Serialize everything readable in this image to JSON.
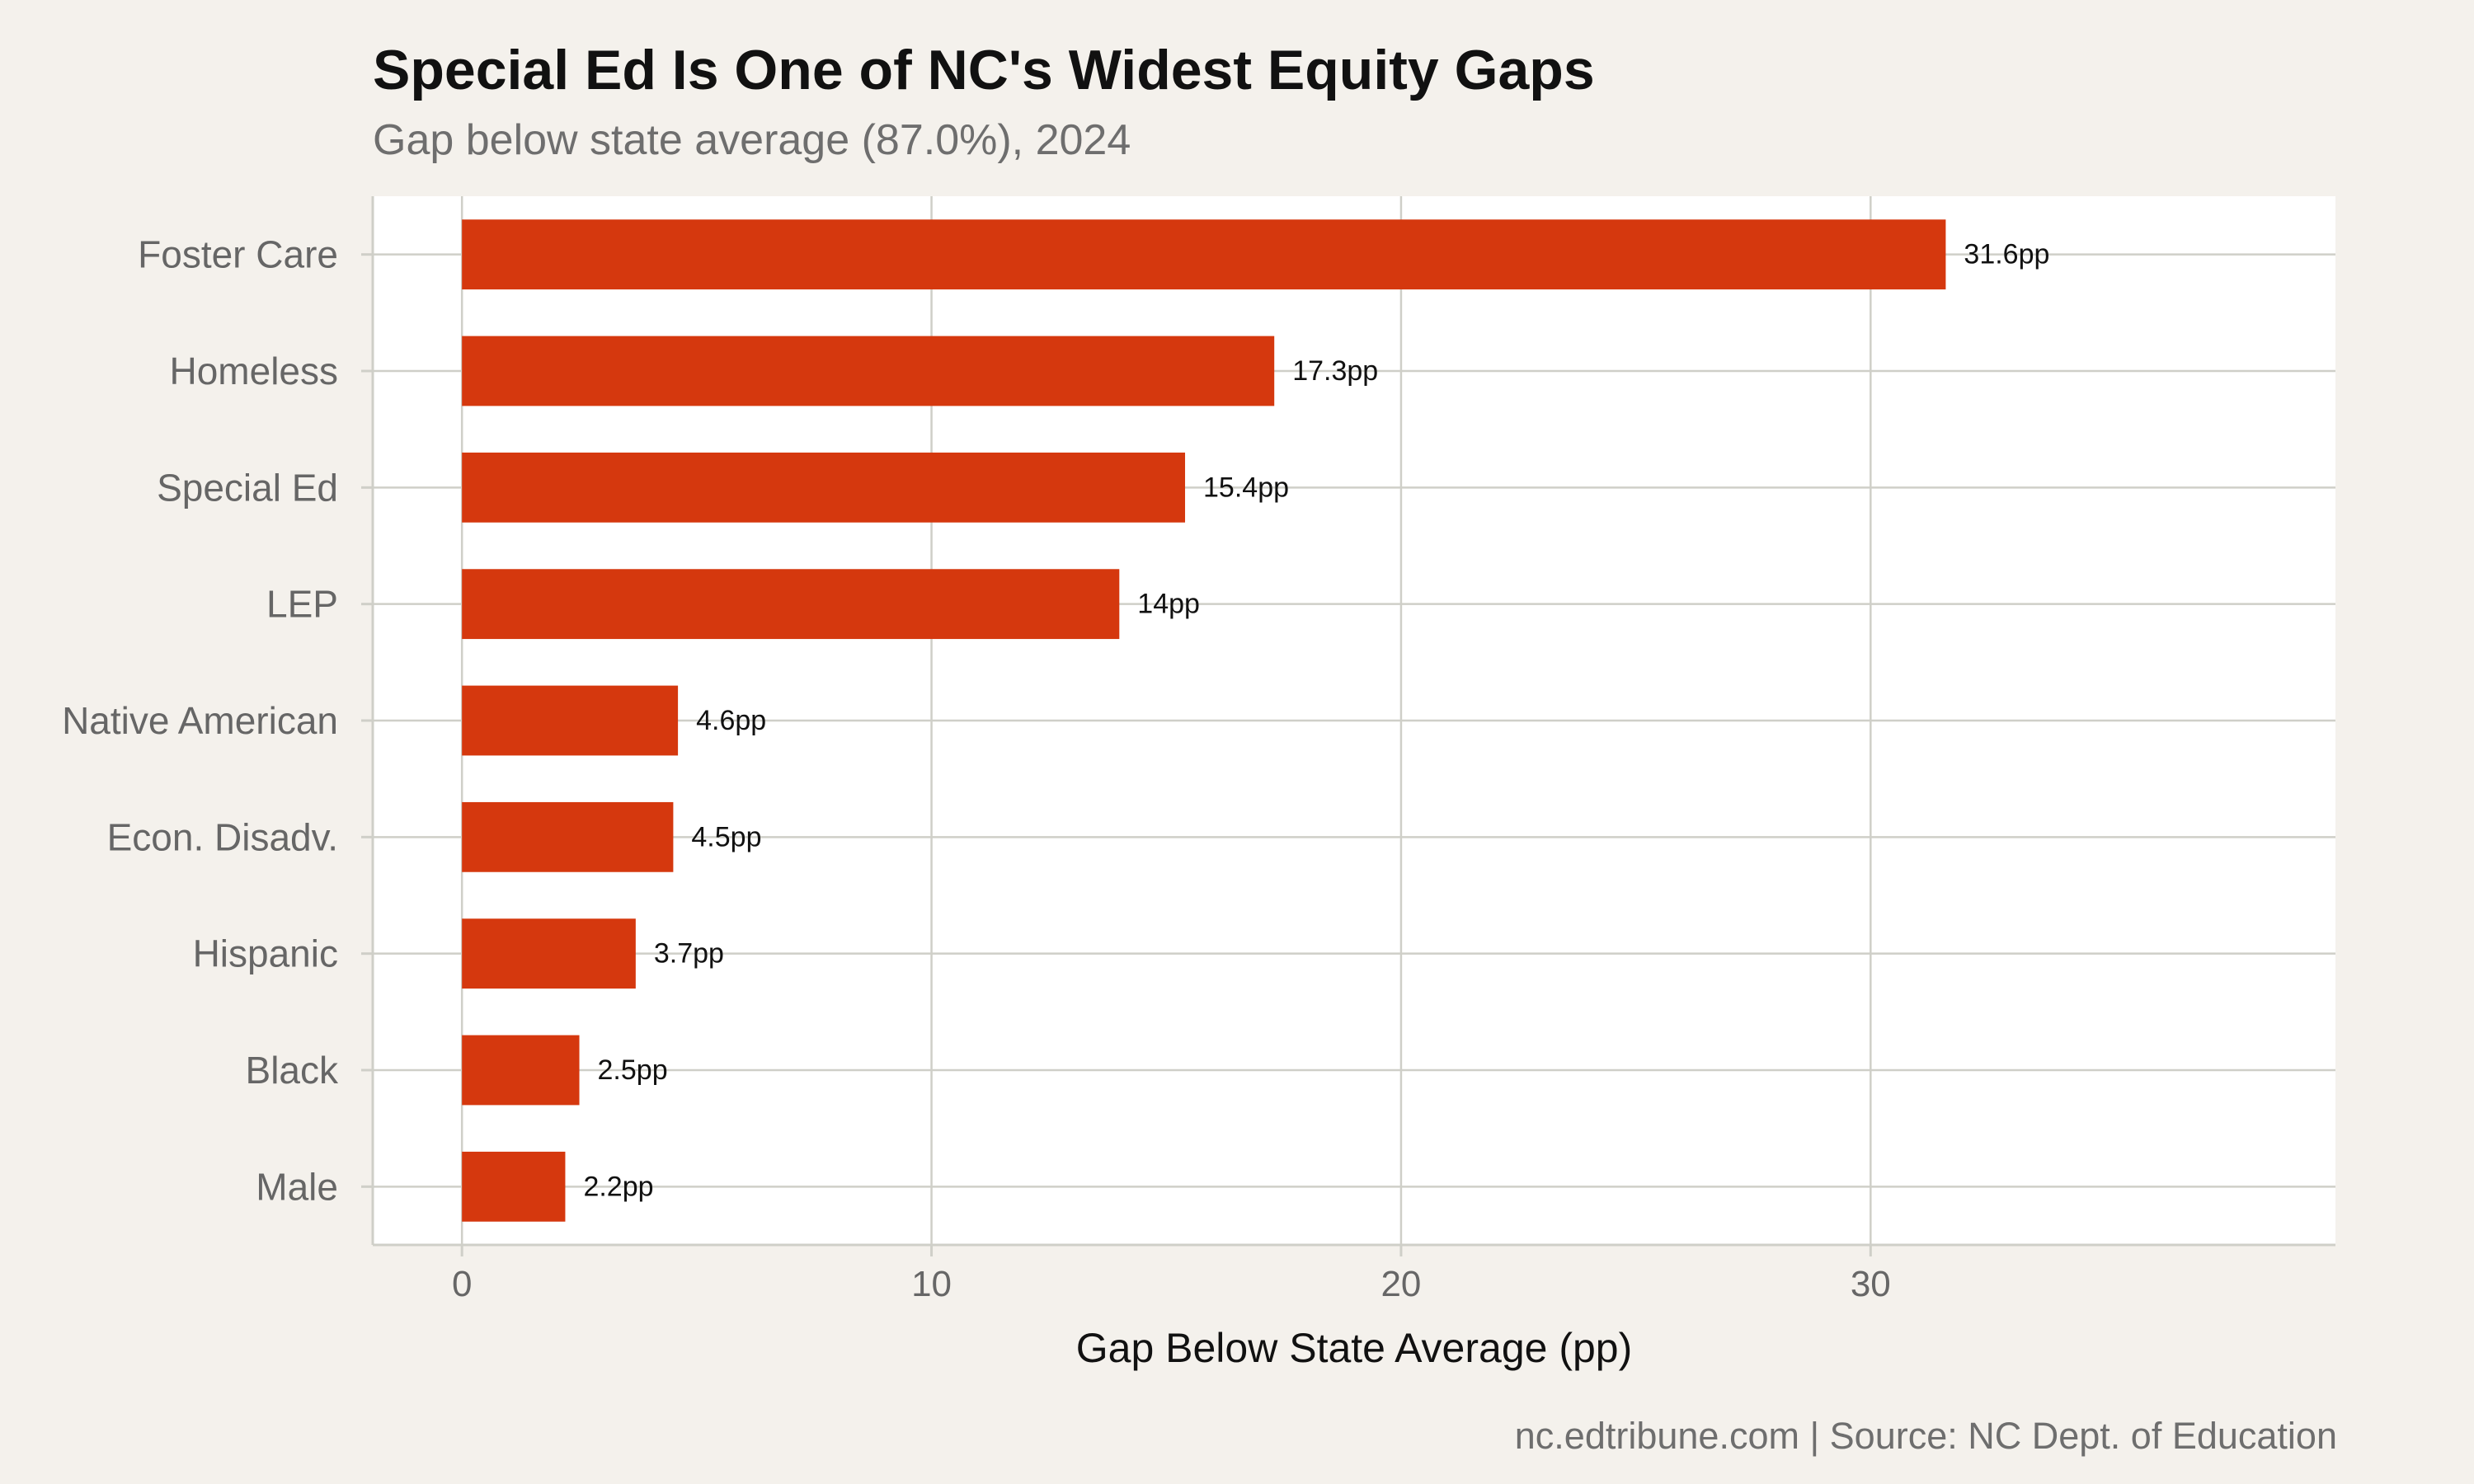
{
  "header": {
    "title": "Special Ed Is One of NC's Widest Equity Gaps",
    "subtitle": "Gap below state average (87.0%), 2024"
  },
  "footer": {
    "caption": "nc.edtribune.com | Source: NC Dept. of Education"
  },
  "colors": {
    "bar": "#d5380e",
    "panel": "#ffffff",
    "background": "#f4f1ec",
    "grid": "#cfcfc8",
    "axis_text": "#666666",
    "label_text": "#111111"
  },
  "chart_data": {
    "type": "bar",
    "orientation": "horizontal",
    "title": "Special Ed Is One of NC's Widest Equity Gaps",
    "subtitle": "Gap below state average (87.0%), 2024",
    "xlabel": "Gap Below State Average (pp)",
    "ylabel": "",
    "categories": [
      "Foster Care",
      "Homeless",
      "Special Ed",
      "LEP",
      "Native American",
      "Econ. Disadv.",
      "Hispanic",
      "Black",
      "Male"
    ],
    "values": [
      31.6,
      17.3,
      15.4,
      14,
      4.6,
      4.5,
      3.7,
      2.5,
      2.2
    ],
    "data_labels": [
      "31.6pp",
      "17.3pp",
      "15.4pp",
      "14pp",
      "4.6pp",
      "4.5pp",
      "3.7pp",
      "2.5pp",
      "2.2pp"
    ],
    "xlim": [
      -1.9,
      39.9
    ],
    "xticks": [
      0,
      10,
      20,
      30
    ],
    "xtick_labels": [
      "0",
      "10",
      "20",
      "30"
    ],
    "grid": true,
    "legend": "none"
  }
}
